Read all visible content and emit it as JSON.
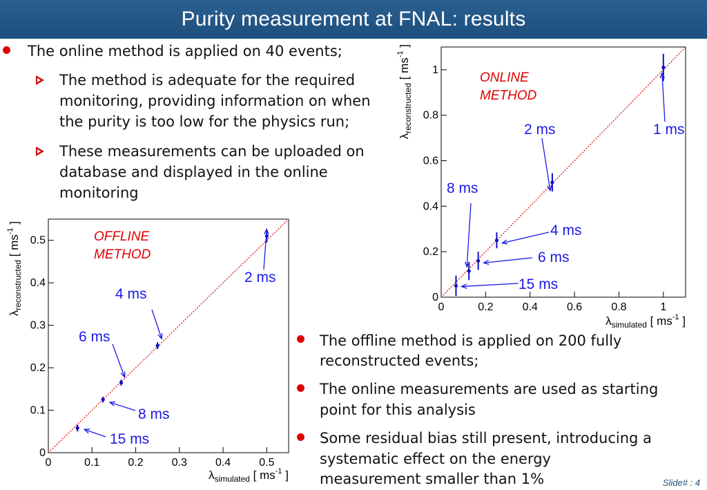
{
  "slide": {
    "title": "Purity measurement at FNAL: results",
    "footer": "Slide# : 4"
  },
  "left_text": {
    "bullet": "The online method is applied on 40 events;",
    "sub1": [
      "The method is adequate for the required",
      "monitoring, providing information on when",
      "the purity is too low for the physics run;"
    ],
    "sub2": [
      "These measurements can be uploaded on",
      "database and displayed in the online",
      "monitoring"
    ]
  },
  "right_text": {
    "b1": [
      "The offline method is applied on 200 fully",
      "reconstructed events;"
    ],
    "b2": [
      "The online measurements are used as starting",
      "point for this analysis"
    ],
    "b3": [
      "Some residual bias still present, introducing a",
      "systematic effect on the energy",
      "measurement smaller than 1%"
    ]
  },
  "colors": {
    "title_bar": "#1d4f7d",
    "annotation": "#1a1ae6",
    "diagonal": "#e03030",
    "points": "#1010c0",
    "bullet": "#e00000"
  },
  "chart_data": [
    {
      "type": "scatter",
      "title": "ONLINE METHOD",
      "xlabel": "λ_simulated [ ms⁻¹ ]",
      "ylabel": "λ_reconstructed [ ms⁻¹ ]",
      "xlim": [
        0,
        1.1
      ],
      "ylim": [
        0,
        1.1
      ],
      "xticks": [
        0,
        0.2,
        0.4,
        0.6,
        0.8,
        1
      ],
      "yticks": [
        0,
        0.2,
        0.4,
        0.6,
        0.8,
        1
      ],
      "xticklabels": [
        "0",
        "0.2",
        "0.4",
        "0.6",
        "0.8",
        "1"
      ],
      "yticklabels": [
        "0",
        "0.2",
        "0.4",
        "0.6",
        "0.8",
        "1"
      ],
      "points": [
        {
          "x": 1.0,
          "y": 1.01,
          "err": 0.06,
          "label": "1 ms"
        },
        {
          "x": 0.5,
          "y": 0.505,
          "err": 0.04,
          "label": "2 ms"
        },
        {
          "x": 0.25,
          "y": 0.25,
          "err": 0.035,
          "label": "4 ms"
        },
        {
          "x": 0.1667,
          "y": 0.16,
          "err": 0.04,
          "label": "6 ms"
        },
        {
          "x": 0.125,
          "y": 0.115,
          "err": 0.04,
          "label": "8 ms"
        },
        {
          "x": 0.0667,
          "y": 0.05,
          "err": 0.045,
          "label": "15 ms"
        }
      ],
      "diagonal": true
    },
    {
      "type": "scatter",
      "title": "OFFLINE METHOD",
      "xlabel": "λ_simulated [ ms⁻¹ ]",
      "ylabel": "λ_reconstructed [ ms⁻¹ ]",
      "xlim": [
        0,
        0.55
      ],
      "ylim": [
        0,
        0.55
      ],
      "xticks": [
        0,
        0.1,
        0.2,
        0.3,
        0.4,
        0.5
      ],
      "yticks": [
        0,
        0.1,
        0.2,
        0.3,
        0.4,
        0.5
      ],
      "xticklabels": [
        "0",
        "0.1",
        "0.2",
        "0.3",
        "0.4",
        "0.5"
      ],
      "yticklabels": [
        "0",
        "0.1",
        "0.2",
        "0.3",
        "0.4",
        "0.5"
      ],
      "points": [
        {
          "x": 0.5,
          "y": 0.51,
          "err": 0.015,
          "label": "2 ms"
        },
        {
          "x": 0.25,
          "y": 0.252,
          "err": 0.008,
          "label": "4 ms"
        },
        {
          "x": 0.1667,
          "y": 0.165,
          "err": 0.007,
          "label": "6 ms"
        },
        {
          "x": 0.125,
          "y": 0.125,
          "err": 0.007,
          "label": "8 ms"
        },
        {
          "x": 0.0667,
          "y": 0.058,
          "err": 0.008,
          "label": "15 ms"
        }
      ],
      "diagonal": true
    }
  ]
}
